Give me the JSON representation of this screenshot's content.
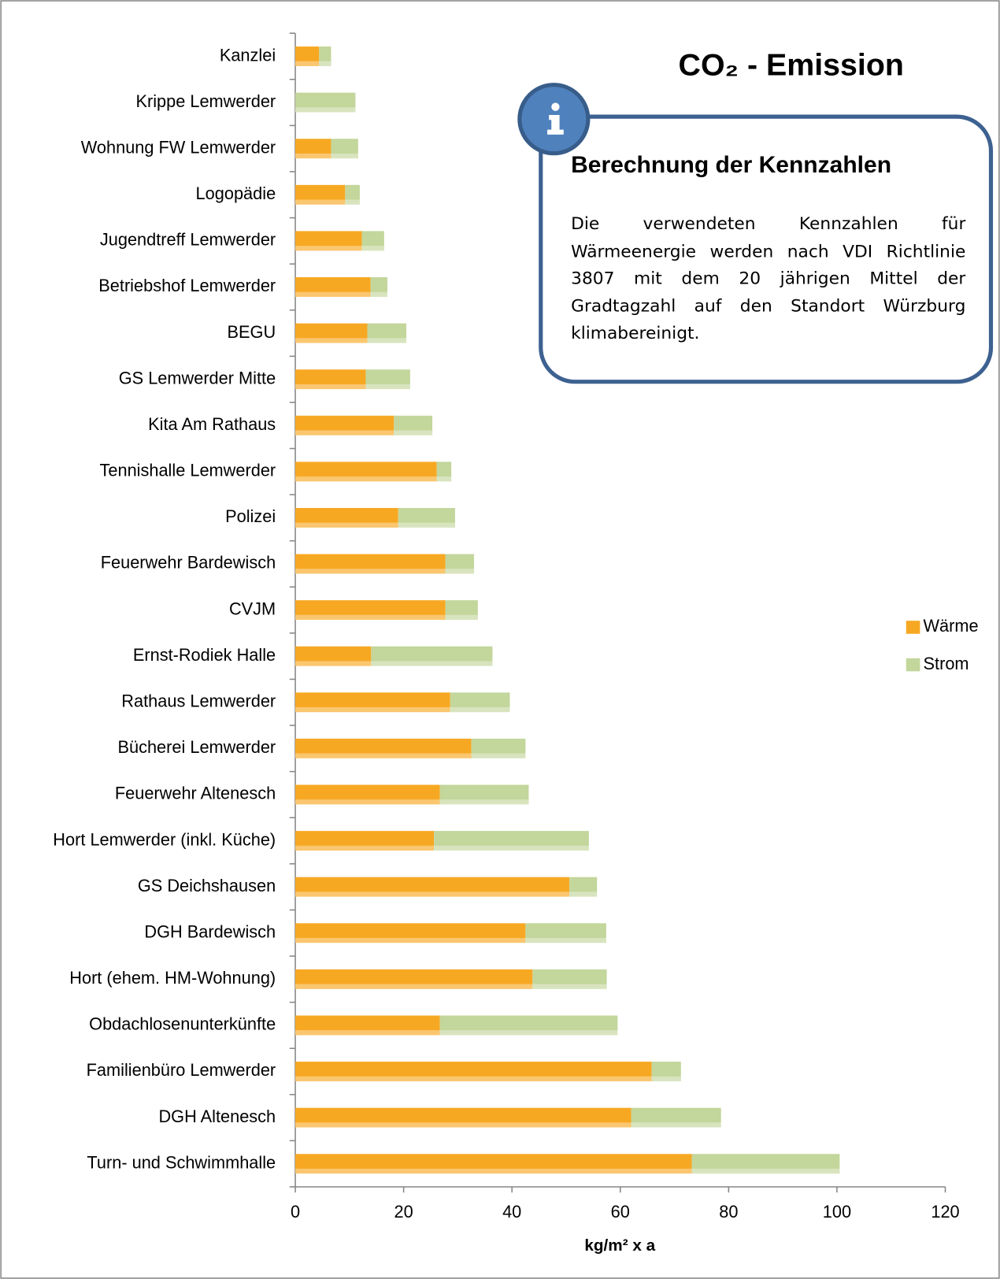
{
  "chart_data": {
    "type": "stacked-barh",
    "title": "CO₂ - Emission",
    "x_label": "kg/m² x a",
    "categories": [
      "Kanzlei",
      "Krippe Lemwerder",
      "Wohnung FW Lemwerder",
      "Logopädie",
      "Jugendtreff Lemwerder",
      "Betriebshof Lemwerder",
      "BEGU",
      "GS Lemwerder Mitte",
      "Kita Am Rathaus",
      "Tennishalle Lemwerder",
      "Polizei",
      "Feuerwehr Bardewisch",
      "CVJM",
      "Ernst-Rodiek Halle",
      "Rathaus Lemwerder",
      "Bücherei Lemwerder",
      "Feuerwehr Altenesch",
      "Hort Lemwerder (inkl. Küche)",
      "GS Deichshausen",
      "DGH Bardewisch",
      "Hort (ehem. HM-Wohnung)",
      "Obdachlosenunterkünfte",
      "Familienbüro Lemwerder",
      "DGH Altenesch",
      "Turn- und Schwimmhalle"
    ],
    "series": [
      {
        "name": "Wärme",
        "color": "#f7a823",
        "values": [
          4.4,
          0,
          6.6,
          9.2,
          12.3,
          13.9,
          13.3,
          13.0,
          18.2,
          26.1,
          19.0,
          27.7,
          27.7,
          14.0,
          28.6,
          32.5,
          26.7,
          25.6,
          50.6,
          42.5,
          43.8,
          26.7,
          65.8,
          62.0,
          73.2
        ]
      },
      {
        "name": "Strom",
        "color": "#c3d69b",
        "values": [
          2.2,
          11.1,
          5.0,
          2.7,
          4.1,
          3.1,
          7.2,
          8.2,
          7.1,
          2.7,
          10.5,
          5.3,
          6.0,
          22.4,
          11.0,
          10.0,
          16.4,
          28.6,
          5.1,
          14.9,
          13.7,
          32.8,
          5.4,
          16.6,
          27.3
        ]
      }
    ],
    "xlim": [
      0,
      120
    ],
    "xticks": [
      0,
      20,
      40,
      60,
      80,
      100,
      120
    ],
    "legend": "right",
    "info_box": {
      "title": "Berechnung der Kennzahlen",
      "text": "Die verwendeten Kennzahlen für Wärmeenergie werden nach VDI Richtlinie 3807 mit dem 20 jährigen Mittel der Gradtagzahl auf den Standort Würzburg klimabereinigt."
    }
  }
}
